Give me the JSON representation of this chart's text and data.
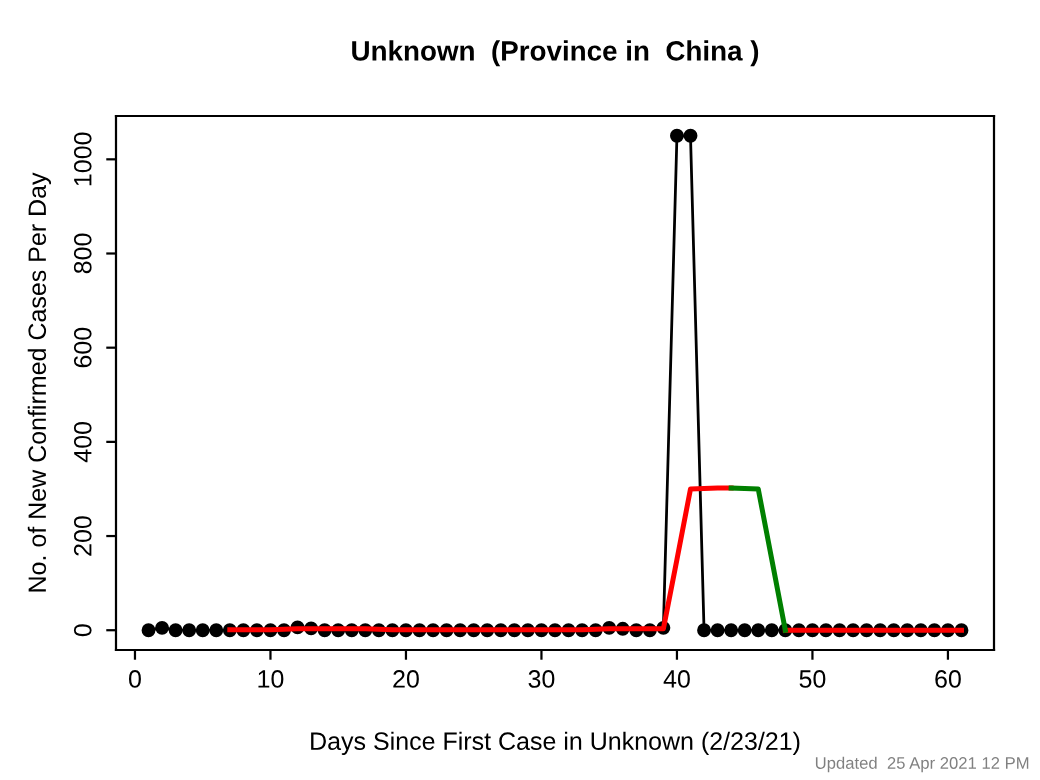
{
  "chart_data": {
    "type": "line",
    "title": "Unknown  (Province in  China )",
    "xlabel": "Days Since First Case in Unknown (2/23/21)",
    "ylabel": "No. of New Confirmed Cases Per Day",
    "annotations": [
      "Updated  25 Apr 2021 12 PM"
    ],
    "series": [
      {
        "marker": "circle",
        "color": "#000000",
        "x": [
          1,
          2,
          3,
          4,
          5,
          6,
          7,
          8,
          9,
          10,
          11,
          12,
          13,
          14,
          15,
          16,
          17,
          18,
          19,
          20,
          21,
          22,
          23,
          24,
          25,
          26,
          27,
          28,
          29,
          30,
          31,
          32,
          33,
          34,
          35,
          36,
          37,
          38,
          39,
          40,
          41,
          42,
          43,
          44,
          45,
          46,
          47,
          48,
          49,
          50,
          51,
          52,
          53,
          54,
          55,
          56,
          57,
          58,
          59,
          60,
          61
        ],
        "values": [
          0,
          5,
          0,
          0,
          0,
          0,
          0,
          0,
          0,
          0,
          0,
          6,
          4,
          0,
          0,
          0,
          0,
          0,
          0,
          0,
          0,
          0,
          0,
          0,
          0,
          0,
          0,
          0,
          0,
          0,
          0,
          0,
          0,
          0,
          5,
          3,
          0,
          0,
          5,
          1050,
          1050,
          0,
          0,
          0,
          0,
          0,
          0,
          0,
          0,
          0,
          0,
          0,
          0,
          0,
          0,
          0,
          0,
          0,
          0,
          0,
          0
        ]
      },
      {
        "marker": "none",
        "color": "#ff0000",
        "x": [
          7,
          8,
          9,
          10,
          11,
          12,
          13,
          14,
          15,
          16,
          17,
          18,
          19,
          20,
          21,
          22,
          23,
          24,
          25,
          26,
          27,
          28,
          29,
          30,
          31,
          32,
          33,
          34,
          35,
          36,
          37,
          38,
          39,
          40,
          41,
          42,
          43,
          44,
          null,
          48,
          49,
          50,
          51,
          52,
          53,
          54,
          55,
          56,
          57,
          58,
          59,
          60,
          61
        ],
        "values": [
          1,
          1,
          1,
          1,
          2,
          3,
          3,
          3,
          3,
          3,
          3,
          2,
          1,
          1,
          1,
          1,
          1,
          1,
          1,
          1,
          1,
          1,
          1,
          1,
          1,
          1,
          1,
          2,
          3,
          3,
          3,
          3,
          3,
          150,
          300,
          301,
          302,
          302,
          null,
          0,
          0,
          0,
          0,
          0,
          0,
          0,
          0,
          0,
          0,
          0,
          0,
          0,
          0
        ]
      },
      {
        "marker": "none",
        "color": "#008000",
        "x": [
          44,
          45,
          46,
          47,
          48
        ],
        "values": [
          302,
          301,
          300,
          150,
          0
        ]
      }
    ],
    "xlim": [
      -1.4,
      63.4
    ],
    "xticks": [
      0,
      10,
      20,
      30,
      40,
      50,
      60
    ],
    "ylim": [
      -42,
      1092
    ],
    "yticks": [
      0,
      200,
      400,
      600,
      800,
      1000
    ],
    "grid": false,
    "legend": false
  }
}
